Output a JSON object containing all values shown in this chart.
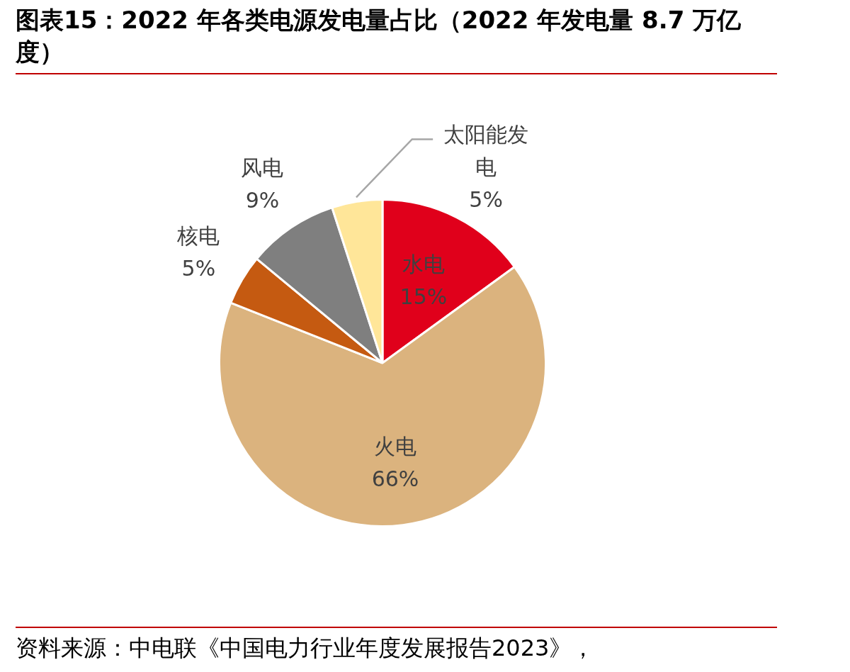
{
  "chart_data": {
    "type": "pie",
    "title": "图表15：2022 年各类电源发电量占比（2022 年发电量 8.7 万亿度）",
    "categories": [
      "水电",
      "火电",
      "核电",
      "风电",
      "太阳能发电"
    ],
    "values": [
      15,
      66,
      5,
      9,
      5
    ],
    "colors": [
      "#e0001b",
      "#dbb37e",
      "#c55a11",
      "#7f7f7f",
      "#ffe699"
    ],
    "value_labels": [
      "15%",
      "66%",
      "5%",
      "9%",
      "5%"
    ],
    "legend": false,
    "annotations": [
      "资料来源：中电联《中国电力行业年度发展报告2023》，"
    ]
  }
}
